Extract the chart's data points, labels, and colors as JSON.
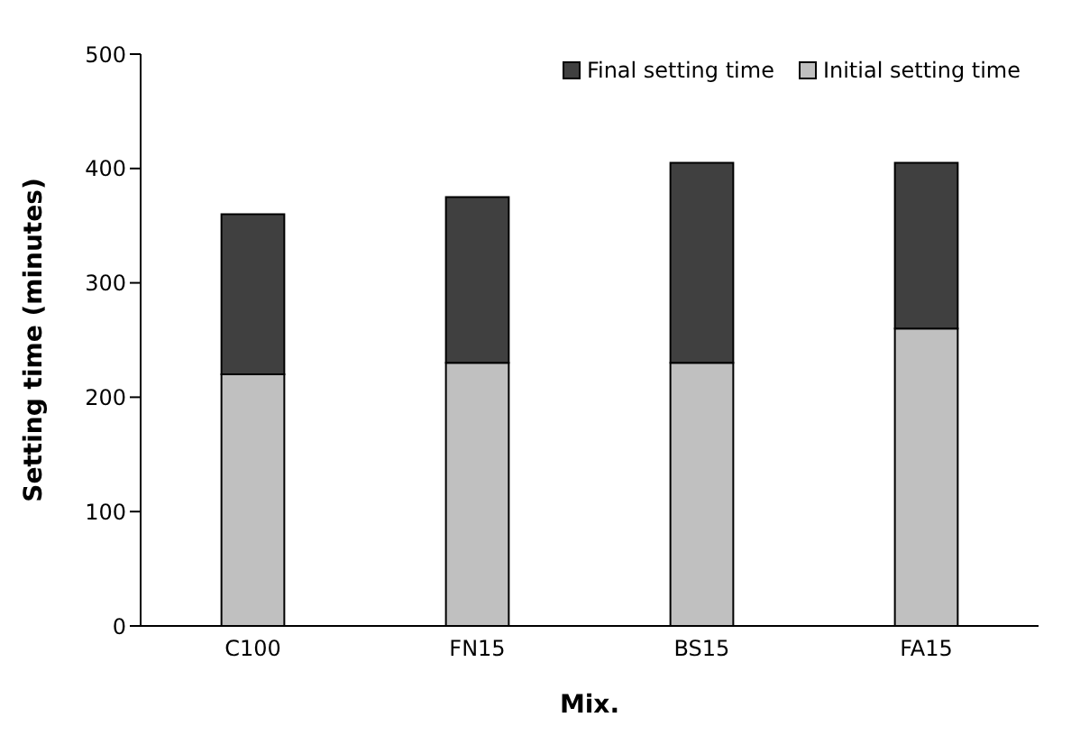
{
  "chart_data": {
    "type": "bar",
    "stacked": true,
    "xlabel": "Mix.",
    "ylabel": "Setting time (minutes)",
    "categories": [
      "C100",
      "FN15",
      "BS15",
      "FA15"
    ],
    "series": [
      {
        "name": "Initial setting time",
        "color": "#c0c0c0",
        "values": [
          220,
          230,
          230,
          260
        ]
      },
      {
        "name": "Final setting time",
        "color": "#404040",
        "values": [
          140,
          145,
          175,
          145
        ]
      }
    ],
    "ylim": [
      0,
      500
    ],
    "yticks": [
      0,
      100,
      200,
      300,
      400,
      500
    ],
    "grid": false,
    "legend": "top right"
  }
}
